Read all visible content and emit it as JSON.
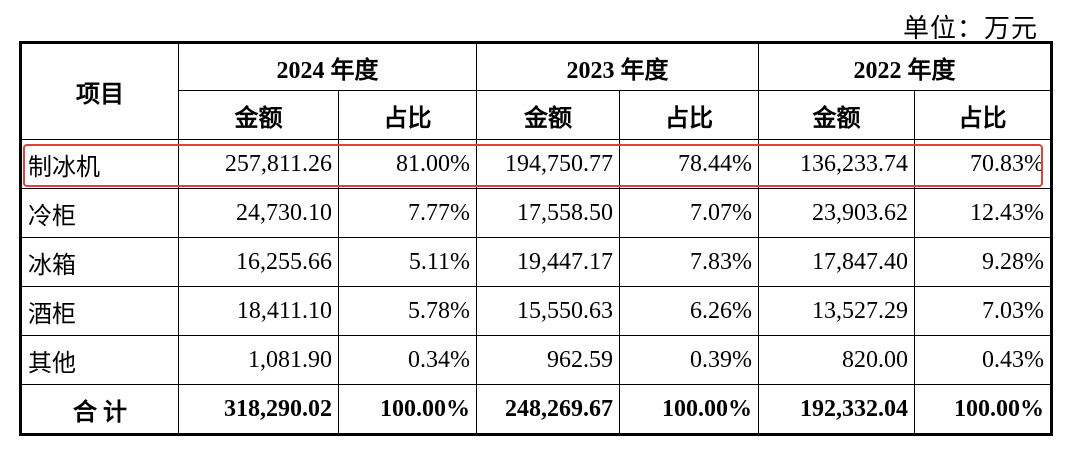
{
  "unit_label": "单位：万元",
  "colors": {
    "highlight": "#e0403a",
    "border": "#000000",
    "text": "#000000"
  },
  "header": {
    "item_label": "项目",
    "years": [
      "2024 年度",
      "2023 年度",
      "2022 年度"
    ],
    "amount_label": "金额",
    "ratio_label": "占比"
  },
  "rows": [
    {
      "name": "制冰机",
      "values": [
        "257,811.26",
        "81.00%",
        "194,750.77",
        "78.44%",
        "136,233.74",
        "70.83%"
      ]
    },
    {
      "name": "冷柜",
      "values": [
        "24,730.10",
        "7.77%",
        "17,558.50",
        "7.07%",
        "23,903.62",
        "12.43%"
      ]
    },
    {
      "name": "冰箱",
      "values": [
        "16,255.66",
        "5.11%",
        "19,447.17",
        "7.83%",
        "17,847.40",
        "9.28%"
      ]
    },
    {
      "name": "酒柜",
      "values": [
        "18,411.10",
        "5.78%",
        "15,550.63",
        "6.26%",
        "13,527.29",
        "7.03%"
      ]
    },
    {
      "name": "其他",
      "values": [
        "1,081.90",
        "0.34%",
        "962.59",
        "0.39%",
        "820.00",
        "0.43%"
      ]
    }
  ],
  "total": {
    "name": "合 计",
    "values": [
      "318,290.02",
      "100.00%",
      "248,269.67",
      "100.00%",
      "192,332.04",
      "100.00%"
    ]
  }
}
